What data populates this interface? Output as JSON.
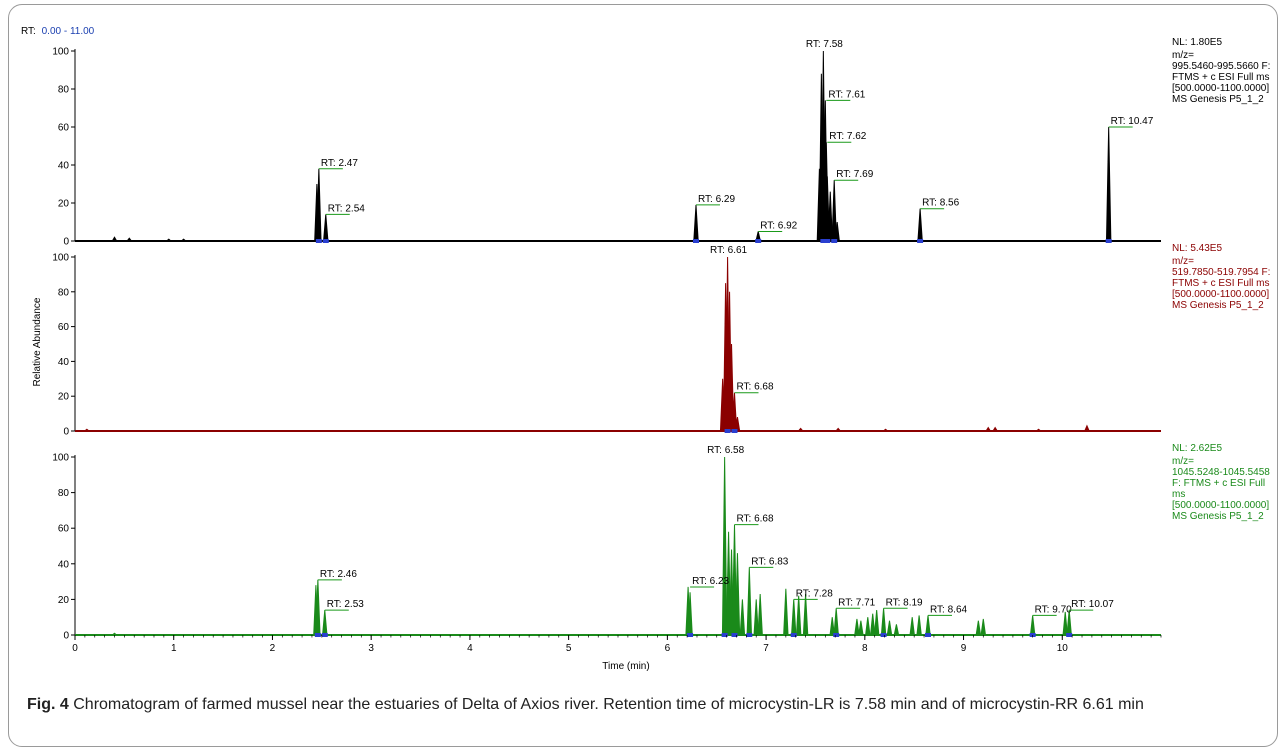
{
  "rt_label": "RT:",
  "rt_range": "0.00 - 11.00",
  "caption": {
    "prefix": "Fig. 4",
    "text": "Chromatogram of farmed mussel near the estuaries of Delta of Axios river. Retention time of microcystin-LR is 7.58 min and of microcystin-RR 6.61 min"
  },
  "colors": {
    "trace1": "#000000",
    "trace2": "#8b0000",
    "trace3": "#1a8a1a",
    "axis": "#000000",
    "label_line": "#1a9a1a",
    "marker": "#2a3fd0",
    "range_text": "#1a3fb0"
  },
  "chart_data": {
    "type": "line",
    "xlabel": "Time (min)",
    "ylabel": "Relative Abundance",
    "xlim": [
      0,
      11
    ],
    "ylim": [
      0,
      100
    ],
    "x_ticks": [
      0,
      1,
      2,
      3,
      4,
      5,
      6,
      7,
      8,
      9,
      10
    ],
    "y_ticks": [
      0,
      20,
      40,
      60,
      80,
      100
    ],
    "panels": [
      {
        "name": "995.5460-995.5660",
        "nl": "NL: 1.80E5",
        "info": [
          "m/z=",
          "995.5460-995.5660 F:",
          "FTMS + c ESI Full ms",
          "[500.0000-1100.0000]",
          "MS Genesis P5_1_2"
        ],
        "peaks": [
          {
            "rt": 0.4,
            "h": 2
          },
          {
            "rt": 0.55,
            "h": 1.5
          },
          {
            "rt": 0.95,
            "h": 1
          },
          {
            "rt": 1.1,
            "h": 1
          },
          {
            "rt": 2.45,
            "h": 30
          },
          {
            "rt": 2.47,
            "h": 38
          },
          {
            "rt": 2.54,
            "h": 14
          },
          {
            "rt": 6.29,
            "h": 19
          },
          {
            "rt": 6.92,
            "h": 5
          },
          {
            "rt": 7.54,
            "h": 38
          },
          {
            "rt": 7.56,
            "h": 88
          },
          {
            "rt": 7.58,
            "h": 100
          },
          {
            "rt": 7.6,
            "h": 74
          },
          {
            "rt": 7.61,
            "h": 52
          },
          {
            "rt": 7.62,
            "h": 34
          },
          {
            "rt": 7.65,
            "h": 26
          },
          {
            "rt": 7.69,
            "h": 32
          },
          {
            "rt": 7.72,
            "h": 10
          },
          {
            "rt": 8.56,
            "h": 17
          },
          {
            "rt": 10.47,
            "h": 60
          }
        ],
        "labels": [
          {
            "text": "RT: 2.47",
            "rt": 2.47,
            "h": 38
          },
          {
            "text": "RT: 2.54",
            "rt": 2.54,
            "h": 14
          },
          {
            "text": "RT: 6.29",
            "rt": 6.29,
            "h": 19
          },
          {
            "text": "RT: 6.92",
            "rt": 6.92,
            "h": 5
          },
          {
            "text": "RT: 7.58",
            "rt": 7.58,
            "h": 100
          },
          {
            "text": "RT: 7.61",
            "rt": 7.61,
            "h": 74
          },
          {
            "text": "RT: 7.62",
            "rt": 7.62,
            "h": 52
          },
          {
            "text": "RT: 7.69",
            "rt": 7.69,
            "h": 32
          },
          {
            "text": "RT: 8.56",
            "rt": 8.56,
            "h": 17
          },
          {
            "text": "RT: 10.47",
            "rt": 10.47,
            "h": 60
          }
        ]
      },
      {
        "name": "519.7850-519.7954",
        "nl": "NL: 5.43E5",
        "info": [
          "m/z=",
          "519.7850-519.7954 F:",
          "FTMS + c ESI Full ms",
          "[500.0000-1100.0000]",
          "MS Genesis P5_1_2"
        ],
        "peaks": [
          {
            "rt": 0.12,
            "h": 1
          },
          {
            "rt": 6.56,
            "h": 30
          },
          {
            "rt": 6.59,
            "h": 85
          },
          {
            "rt": 6.61,
            "h": 100
          },
          {
            "rt": 6.63,
            "h": 80
          },
          {
            "rt": 6.65,
            "h": 50
          },
          {
            "rt": 6.68,
            "h": 22
          },
          {
            "rt": 6.71,
            "h": 8
          },
          {
            "rt": 7.35,
            "h": 1.5
          },
          {
            "rt": 7.73,
            "h": 1.5
          },
          {
            "rt": 8.21,
            "h": 1
          },
          {
            "rt": 9.25,
            "h": 2
          },
          {
            "rt": 9.32,
            "h": 2
          },
          {
            "rt": 9.76,
            "h": 1
          },
          {
            "rt": 10.25,
            "h": 3
          }
        ],
        "labels": [
          {
            "text": "RT: 6.61",
            "rt": 6.61,
            "h": 100
          },
          {
            "text": "RT: 6.68",
            "rt": 6.68,
            "h": 22
          }
        ]
      },
      {
        "name": "1045.5248-1045.5458",
        "nl": "NL: 2.62E5",
        "info": [
          "m/z=",
          "1045.5248-1045.5458",
          "F: FTMS + c ESI Full",
          "ms",
          "[500.0000-1100.0000]",
          "MS Genesis P5_1_2"
        ],
        "peaks": [
          {
            "rt": 0.4,
            "h": 1
          },
          {
            "rt": 2.44,
            "h": 28
          },
          {
            "rt": 2.46,
            "h": 31
          },
          {
            "rt": 2.53,
            "h": 14
          },
          {
            "rt": 6.21,
            "h": 27
          },
          {
            "rt": 6.23,
            "h": 24
          },
          {
            "rt": 6.58,
            "h": 100
          },
          {
            "rt": 6.62,
            "h": 58
          },
          {
            "rt": 6.65,
            "h": 48
          },
          {
            "rt": 6.68,
            "h": 62
          },
          {
            "rt": 6.71,
            "h": 46
          },
          {
            "rt": 6.76,
            "h": 20
          },
          {
            "rt": 6.83,
            "h": 38
          },
          {
            "rt": 6.9,
            "h": 20
          },
          {
            "rt": 6.94,
            "h": 23
          },
          {
            "rt": 7.2,
            "h": 26
          },
          {
            "rt": 7.28,
            "h": 20
          },
          {
            "rt": 7.33,
            "h": 22
          },
          {
            "rt": 7.4,
            "h": 23
          },
          {
            "rt": 7.67,
            "h": 10
          },
          {
            "rt": 7.71,
            "h": 15
          },
          {
            "rt": 7.92,
            "h": 9
          },
          {
            "rt": 7.96,
            "h": 8
          },
          {
            "rt": 8.03,
            "h": 10
          },
          {
            "rt": 8.08,
            "h": 12
          },
          {
            "rt": 8.12,
            "h": 14
          },
          {
            "rt": 8.19,
            "h": 15
          },
          {
            "rt": 8.25,
            "h": 8
          },
          {
            "rt": 8.32,
            "h": 6
          },
          {
            "rt": 8.48,
            "h": 10
          },
          {
            "rt": 8.55,
            "h": 11
          },
          {
            "rt": 8.64,
            "h": 11
          },
          {
            "rt": 9.15,
            "h": 8
          },
          {
            "rt": 9.2,
            "h": 9
          },
          {
            "rt": 9.7,
            "h": 11
          },
          {
            "rt": 10.03,
            "h": 13
          },
          {
            "rt": 10.07,
            "h": 14
          }
        ],
        "labels": [
          {
            "text": "RT: 2.46",
            "rt": 2.46,
            "h": 31
          },
          {
            "text": "RT: 2.53",
            "rt": 2.53,
            "h": 14
          },
          {
            "text": "RT: 6.23",
            "rt": 6.23,
            "h": 27
          },
          {
            "text": "RT: 6.58",
            "rt": 6.58,
            "h": 100
          },
          {
            "text": "RT: 6.68",
            "rt": 6.68,
            "h": 62
          },
          {
            "text": "RT: 6.83",
            "rt": 6.83,
            "h": 38
          },
          {
            "text": "RT: 7.28",
            "rt": 7.28,
            "h": 20
          },
          {
            "text": "RT: 7.71",
            "rt": 7.71,
            "h": 15
          },
          {
            "text": "RT: 8.19",
            "rt": 8.19,
            "h": 15
          },
          {
            "text": "RT: 8.64",
            "rt": 8.64,
            "h": 11
          },
          {
            "text": "RT: 9.70",
            "rt": 9.7,
            "h": 11
          },
          {
            "text": "RT: 10.07",
            "rt": 10.07,
            "h": 14
          }
        ]
      }
    ]
  }
}
